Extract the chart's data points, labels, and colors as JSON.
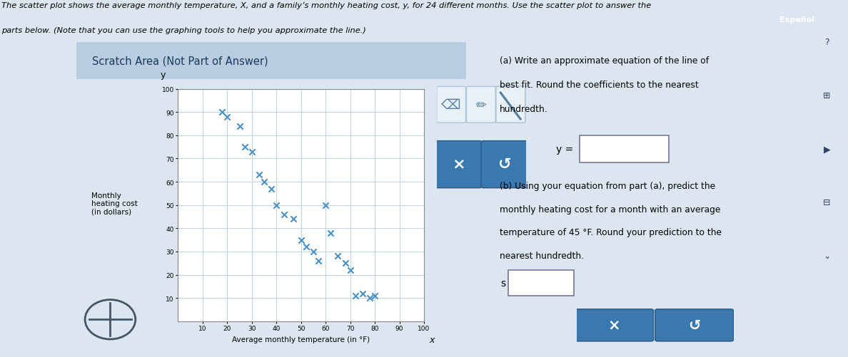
{
  "title_line1": "The scatter plot shows the average monthly temperature, X, and a family’s monthly heating cost, y, for 24 different months. Use the scatter plot to answer the",
  "title_line2": "parts below. (Note that you can use the graphing tools to help you approximate the line.)",
  "scratch_title": "Scratch Area (Not Part of Answer)",
  "ylabel": "Monthly\nheating cost\n(in dollars)",
  "xlabel": "Average monthly temperature (in °F)",
  "xlim": [
    0,
    100
  ],
  "ylim": [
    0,
    100
  ],
  "xtick_labels": [
    "10",
    "20",
    "30",
    "40",
    "50",
    "60",
    "70",
    "80",
    "90",
    "100"
  ],
  "xticks": [
    10,
    20,
    30,
    40,
    50,
    60,
    70,
    80,
    90,
    100
  ],
  "yticks": [
    10,
    20,
    30,
    40,
    50,
    60,
    70,
    80,
    90,
    100
  ],
  "scatter_x": [
    18,
    20,
    25,
    27,
    30,
    33,
    35,
    38,
    40,
    43,
    47,
    50,
    52,
    55,
    57,
    60,
    62,
    65,
    68,
    70,
    72,
    75,
    78,
    80
  ],
  "scatter_y": [
    90,
    88,
    84,
    75,
    73,
    63,
    60,
    57,
    50,
    46,
    44,
    35,
    32,
    30,
    26,
    50,
    38,
    28,
    25,
    22,
    11,
    12,
    10,
    11
  ],
  "marker_color": "#4a90c4",
  "bg_color": "#dce6f0",
  "scratch_panel_bg": "#dce6f0",
  "scratch_title_bg": "#b8cee0",
  "plot_area_bg": "#f5f7fa",
  "plot_bg": "#ffffff",
  "grid_color": "#b8ccd8",
  "part_a_text_line1": "(a) Write an approximate equation of the line of",
  "part_a_text_line2": "best fit. Round the coefficients to the nearest",
  "part_a_text_line3": "hundredth.",
  "part_b_text_line1": "(b) Using your equation from part (a), predict the",
  "part_b_text_line2": "monthly heating cost for a month with an average",
  "part_b_text_line3": "temperature of 45 °F. Round your prediction to the",
  "part_b_text_line4": "nearest hundredth.",
  "btn_color": "#3a78b0",
  "espanol_text": "Español",
  "espanol_bg": "#5a8ab0"
}
